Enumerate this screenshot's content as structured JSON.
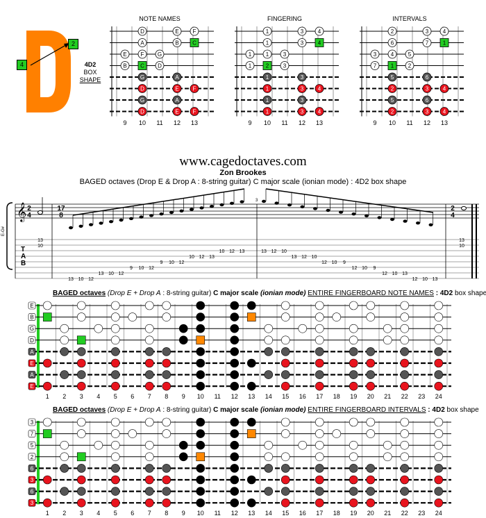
{
  "logo": {
    "letter": "D",
    "color": "#ff8000",
    "left_label": "4",
    "right_label": "2",
    "green": "#22cc22"
  },
  "shape": {
    "name": "4D2",
    "line1": "BOX",
    "line2": "SHAPE"
  },
  "panels": [
    {
      "title": "NOTE NAMES",
      "rows": [
        [
          "",
          "D",
          "",
          "E",
          "F"
        ],
        [
          "",
          "A",
          "",
          "B",
          "C"
        ],
        [
          "E",
          "F",
          "G",
          "",
          ""
        ],
        [
          "B",
          "C",
          "D",
          "",
          ""
        ],
        [
          "",
          "G",
          "",
          "A",
          ""
        ],
        [
          "",
          "D",
          "",
          "E",
          "F"
        ],
        [
          "",
          "G",
          "",
          "A",
          ""
        ],
        [
          "",
          "D",
          "",
          "E",
          "F"
        ]
      ]
    },
    {
      "title": "FINGERING",
      "rows": [
        [
          "",
          "1",
          "",
          "3",
          "4"
        ],
        [
          "",
          "1",
          "",
          "3",
          "4"
        ],
        [
          "1",
          "1",
          "3",
          "",
          ""
        ],
        [
          "1",
          "2",
          "3",
          "",
          ""
        ],
        [
          "",
          "1",
          "",
          "3",
          ""
        ],
        [
          "",
          "1",
          "",
          "3",
          "4"
        ],
        [
          "",
          "1",
          "",
          "3",
          ""
        ],
        [
          "",
          "1",
          "",
          "3",
          "4"
        ]
      ]
    },
    {
      "title": "INTERVALS",
      "rows": [
        [
          "",
          "2",
          "",
          "3",
          "4"
        ],
        [
          "",
          "6",
          "",
          "7",
          "1"
        ],
        [
          "3",
          "4",
          "5",
          "",
          ""
        ],
        [
          "7",
          "1",
          "2",
          "",
          ""
        ],
        [
          "",
          "5",
          "",
          "6",
          ""
        ],
        [
          "",
          "2",
          "",
          "3",
          "4"
        ],
        [
          "",
          "5",
          "",
          "6",
          ""
        ],
        [
          "",
          "2",
          "",
          "3",
          "4"
        ]
      ]
    }
  ],
  "fret_numbers_small": [
    "9",
    "10",
    "11",
    "12",
    "13"
  ],
  "site": "www.cagedoctaves.com",
  "author": "Zon Brookes",
  "subtitle": "BAGED octaves (Drop E & Drop A : 8-string guitar) C major scale (ionian mode) : 4D2 box shape",
  "staff": {
    "tuning": "E-G#",
    "time1_top": "2",
    "time1_bot": "4",
    "time2_top": "17",
    "time2_bot": "8",
    "measure": "3",
    "tab_letters": [
      "T",
      "A",
      "B"
    ]
  },
  "tab_numbers": [
    [
      "13",
      "10",
      "12",
      "13",
      "10",
      "12",
      "9",
      "10",
      "12",
      "9",
      "10",
      "12",
      "10",
      "12",
      "13",
      "10",
      "12",
      "13"
    ],
    [
      "13",
      "10",
      "12",
      "13",
      "10",
      "12",
      "9",
      "10",
      "12",
      "9",
      "10",
      "12",
      "10",
      "12",
      "13",
      "10",
      "12",
      "13"
    ]
  ],
  "fb1": {
    "title_a": "BAGED octaves",
    "title_b": "(Drop E + Drop A",
    "title_c": ": 8-string guitar)",
    "title_d": "C major scale",
    "title_e": "(ionian mode)",
    "title_f": "ENTIRE FINGERBOARD NOTE NAMES",
    "title_g": ": 4D2",
    "title_h": "box shape",
    "open": [
      "E",
      "B",
      "G",
      "D",
      "A",
      "E",
      "A",
      "E"
    ]
  },
  "fb2": {
    "title_a": "BAGED octaves",
    "title_b": "(Drop E + Drop A",
    "title_c": ": 8-string guitar)",
    "title_d": "C major scale",
    "title_e": "(ionian mode)",
    "title_f": "ENTIRE FINGERBOARD  INTERVALS",
    "title_g": ": 4D2",
    "title_h": "box shape",
    "open": [
      "3",
      "7",
      "5",
      "2",
      "6",
      "3",
      "6",
      "3"
    ]
  },
  "fret_numbers": [
    "1",
    "2",
    "3",
    "4",
    "5",
    "6",
    "7",
    "8",
    "9",
    "10",
    "11",
    "12",
    "13",
    "14",
    "15",
    "16",
    "17",
    "18",
    "19",
    "20",
    "21",
    "22",
    "23",
    "24"
  ],
  "colors": {
    "red": "#e8141e",
    "dark": "#555555",
    "green": "#22cc22",
    "orange": "#ff8800",
    "black": "#000000"
  }
}
